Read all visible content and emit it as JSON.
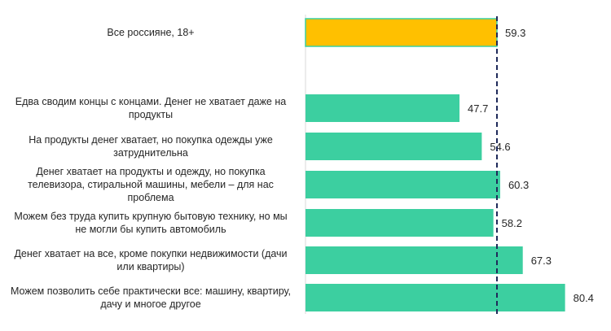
{
  "chart_data": {
    "type": "bar",
    "orientation": "horizontal",
    "categories": [
      "Все россияне, 18+",
      "Едва сводим концы с концами. Денег не хватает даже на продукты",
      "На продукты денег хватает, но покупка одежды уже затруднительна",
      "Денег хватает на продукты и одежду, но покупка телевизора, стиральной машины, мебели – для нас проблема",
      "Можем без труда купить крупную бытовую технику, но мы не могли бы купить автомобиль",
      "Денег хватает на все, кроме покупки недвижимости (дачи или квартиры)",
      "Можем позволить себе практически все: машину, квартиру, дачу и многое другое"
    ],
    "values": [
      59.3,
      47.7,
      54.6,
      60.3,
      58.2,
      67.3,
      80.4
    ],
    "value_labels": [
      "59.3",
      "47.7",
      "54.6",
      "60.3",
      "58.2",
      "67.3",
      "80.4"
    ],
    "bar_colors": [
      "#ffc000",
      "#3ccfa0",
      "#3ccfa0",
      "#3ccfa0",
      "#3ccfa0",
      "#3ccfa0",
      "#3ccfa0"
    ],
    "reference_line": 59.3,
    "reference_line_color": "#1f2a5a",
    "xlim": [
      0,
      82
    ],
    "title": "",
    "xlabel": "",
    "ylabel": "",
    "grid": false
  }
}
